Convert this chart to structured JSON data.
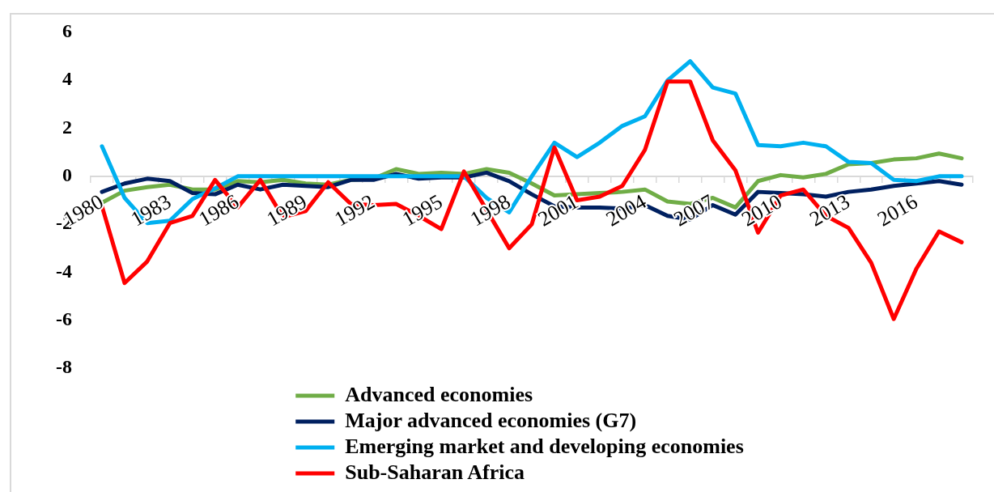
{
  "chart_data": {
    "type": "line",
    "categories": [
      "1980",
      null,
      null,
      "1983",
      null,
      null,
      "1986",
      null,
      null,
      "1989",
      null,
      null,
      "1992",
      null,
      null,
      "1995",
      null,
      null,
      "1998",
      null,
      null,
      "2001",
      null,
      null,
      "2004",
      null,
      null,
      "2007",
      null,
      null,
      "2010",
      null,
      null,
      "2013",
      null,
      null,
      "2016",
      null,
      null
    ],
    "series": [
      {
        "name": "Advanced economies",
        "color": "#70ad47",
        "values": [
          -1.1,
          -0.6,
          -0.45,
          -0.35,
          -0.55,
          -0.55,
          -0.2,
          -0.25,
          -0.15,
          -0.3,
          -0.35,
          -0.15,
          -0.1,
          0.3,
          0.1,
          0.15,
          0.1,
          0.3,
          0.15,
          -0.3,
          -0.8,
          -0.75,
          -0.7,
          -0.65,
          -0.55,
          -1.05,
          -1.15,
          -0.9,
          -1.3,
          -0.2,
          0.05,
          -0.05,
          0.1,
          0.5,
          0.55,
          0.7,
          0.75,
          0.95,
          0.75
        ]
      },
      {
        "name": "Major advanced economies (G7)",
        "color": "#002060",
        "values": [
          -0.65,
          -0.3,
          -0.1,
          -0.2,
          -0.7,
          -0.75,
          -0.35,
          -0.55,
          -0.35,
          -0.4,
          -0.45,
          -0.15,
          -0.15,
          0.1,
          -0.1,
          -0.05,
          -0.05,
          0.15,
          -0.2,
          -0.75,
          -1.25,
          -1.3,
          -1.3,
          -1.35,
          -1.2,
          -1.65,
          -1.8,
          -1.2,
          -1.6,
          -0.65,
          -0.7,
          -0.75,
          -0.85,
          -0.65,
          -0.55,
          -0.4,
          -0.3,
          -0.2,
          -0.35
        ]
      },
      {
        "name": "Emerging market and developing economies",
        "color": "#00b0f0",
        "values": [
          1.25,
          -0.9,
          -1.95,
          -1.85,
          -0.95,
          -0.5,
          0,
          0,
          0,
          0,
          0,
          0,
          0,
          0,
          0,
          0,
          0,
          -0.9,
          -1.5,
          0,
          1.4,
          0.8,
          1.4,
          2.1,
          2.5,
          4,
          4.8,
          3.7,
          3.45,
          1.3,
          1.25,
          1.4,
          1.25,
          0.6,
          0.55,
          -0.15,
          -0.2,
          0,
          0
        ]
      },
      {
        "name": "Sub-Saharan Africa",
        "color": "#ff0000",
        "values": [
          -1.25,
          -4.45,
          -3.55,
          -1.95,
          -1.65,
          -0.15,
          -1.3,
          -0.15,
          -1.7,
          -1.45,
          -0.25,
          -1.15,
          -1.2,
          -1.15,
          -1.65,
          -2.2,
          0.2,
          -1.4,
          -3,
          -2,
          1.2,
          -1,
          -0.85,
          -0.4,
          1.1,
          3.95,
          3.95,
          1.5,
          0.25,
          -2.35,
          -0.8,
          -0.55,
          -1.65,
          -2.15,
          -3.6,
          -5.95,
          -3.85,
          -2.3,
          -2.75
        ]
      }
    ],
    "ylim": [
      -8,
      6
    ],
    "yticks": [
      -8,
      -6,
      -4,
      -2,
      0,
      2,
      4,
      6
    ],
    "grid": false,
    "legend": "bottom",
    "marker": "none",
    "line_style": "solid"
  }
}
